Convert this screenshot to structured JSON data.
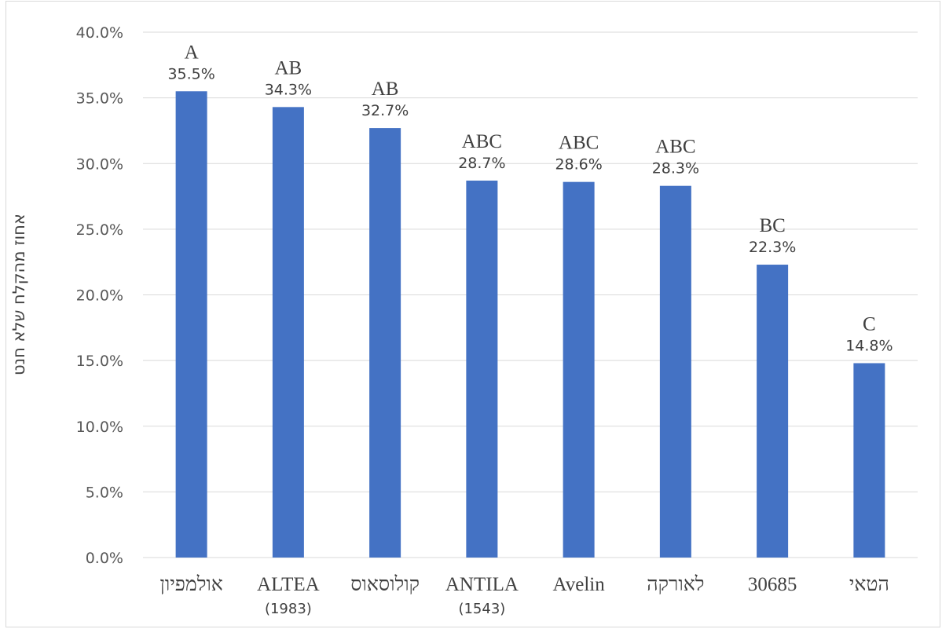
{
  "chart_data": {
    "type": "bar",
    "ylabel": "אחוז מהקלח שלא חנט",
    "ylim": [
      0,
      40
    ],
    "y_ticks": [
      "0.0%",
      "5.0%",
      "10.0%",
      "15.0%",
      "20.0%",
      "25.0%",
      "30.0%",
      "35.0%",
      "40.0%"
    ],
    "categories": [
      {
        "line1": "אולמפיון",
        "line2": ""
      },
      {
        "line1": "ALTEA",
        "line2": "(1983)"
      },
      {
        "line1": "קולוסאוס",
        "line2": ""
      },
      {
        "line1": "ANTILA",
        "line2": "(1543)"
      },
      {
        "line1": "Avelin",
        "line2": ""
      },
      {
        "line1": "לאורקה",
        "line2": ""
      },
      {
        "line1": "30685",
        "line2": ""
      },
      {
        "line1": "הטאי",
        "line2": ""
      }
    ],
    "values": [
      35.5,
      34.3,
      32.7,
      28.7,
      28.6,
      28.3,
      22.3,
      14.8
    ],
    "value_labels": [
      "35.5%",
      "34.3%",
      "32.7%",
      "28.7%",
      "28.6%",
      "28.3%",
      "22.3%",
      "14.8%"
    ],
    "group_letters": [
      "A",
      "AB",
      "AB",
      "ABC",
      "ABC",
      "ABC",
      "BC",
      "C"
    ],
    "bar_color": "#4472c4",
    "grid_color": "#d9d9d9",
    "grid": true
  }
}
